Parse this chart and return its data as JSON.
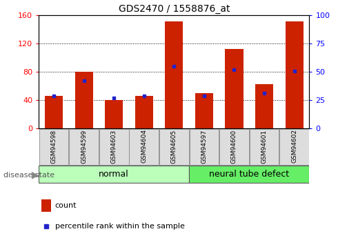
{
  "title": "GDS2470 / 1558876_at",
  "samples": [
    "GSM94598",
    "GSM94599",
    "GSM94603",
    "GSM94604",
    "GSM94605",
    "GSM94597",
    "GSM94600",
    "GSM94601",
    "GSM94602"
  ],
  "counts": [
    46,
    80,
    40,
    46,
    152,
    50,
    113,
    63,
    152
  ],
  "percentiles": [
    29,
    42,
    27,
    29,
    55,
    29,
    52,
    31,
    51
  ],
  "groups": [
    {
      "label": "normal",
      "n": 5,
      "color": "#bbffbb"
    },
    {
      "label": "neural tube defect",
      "n": 4,
      "color": "#66ee66"
    }
  ],
  "ylim_left": [
    0,
    160
  ],
  "ylim_right": [
    0,
    100
  ],
  "yticks_left": [
    0,
    40,
    80,
    120,
    160
  ],
  "yticks_right": [
    0,
    25,
    50,
    75,
    100
  ],
  "bar_color": "#cc2200",
  "dot_color": "#2222cc",
  "legend_count": "count",
  "legend_percentile": "percentile rank within the sample",
  "bar_width": 0.6
}
